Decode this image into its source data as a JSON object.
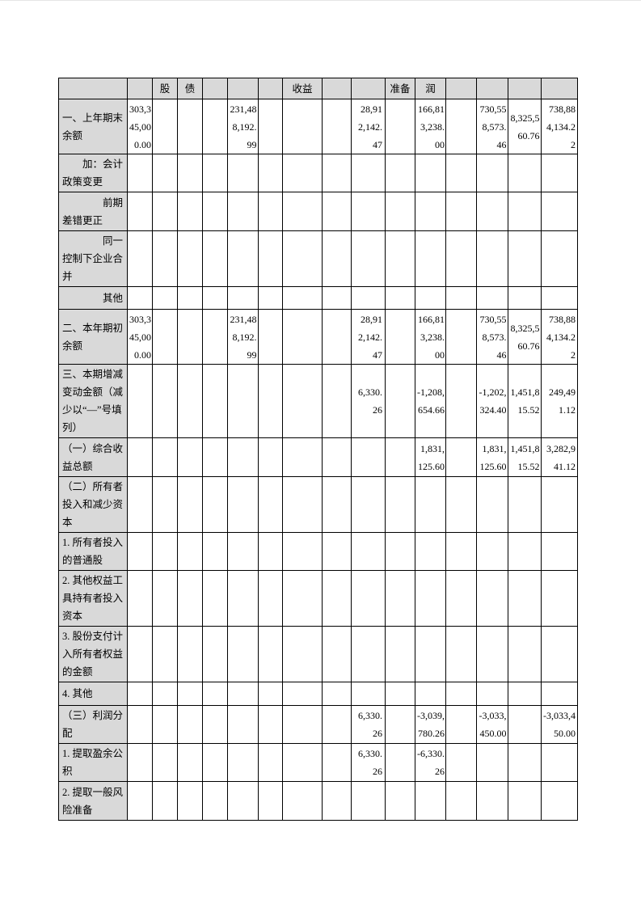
{
  "colors": {
    "page_bg": "#ffffff",
    "shaded_bg": "#d9d9d9",
    "grid": "#000000",
    "text": "#000000"
  },
  "table": {
    "header_cells": [
      "",
      "",
      "股",
      "债",
      "",
      "",
      "",
      "收益",
      "",
      "",
      "准备",
      "润",
      "",
      "",
      "",
      ""
    ],
    "rows": [
      {
        "label": "一、上年期末\n余额",
        "values": [
          "303,345,000.00",
          "",
          "",
          "",
          "231,488,192.99",
          "",
          "",
          "",
          "28,912,142.47",
          "",
          "166,813,238.00",
          "",
          "730,558,573.46",
          "8,325,560.76",
          "738,884,134.22"
        ]
      },
      {
        "label": "　　加：会计\n政策变更",
        "values": [
          "",
          "",
          "",
          "",
          "",
          "",
          "",
          "",
          "",
          "",
          "",
          "",
          "",
          "",
          ""
        ]
      },
      {
        "label": "　　　　前期\n差错更正",
        "values": [
          "",
          "",
          "",
          "",
          "",
          "",
          "",
          "",
          "",
          "",
          "",
          "",
          "",
          "",
          ""
        ]
      },
      {
        "label": "　　　　同一\n控制下企业合\n并",
        "values": [
          "",
          "",
          "",
          "",
          "",
          "",
          "",
          "",
          "",
          "",
          "",
          "",
          "",
          "",
          ""
        ]
      },
      {
        "label": "　　　　其他",
        "values": [
          "",
          "",
          "",
          "",
          "",
          "",
          "",
          "",
          "",
          "",
          "",
          "",
          "",
          "",
          ""
        ]
      },
      {
        "label": "二、本年期初\n余额",
        "values": [
          "303,345,000.00",
          "",
          "",
          "",
          "231,488,192.99",
          "",
          "",
          "",
          "28,912,142.47",
          "",
          "166,813,238.00",
          "",
          "730,558,573.46",
          "8,325,560.76",
          "738,884,134.22"
        ]
      },
      {
        "label": "三、本期增减\n变动金额（减\n少以“—”号填\n列）",
        "values": [
          "",
          "",
          "",
          "",
          "",
          "",
          "",
          "",
          "6,330.26",
          "",
          "-1,208,654.66",
          "",
          "-1,202,324.40",
          "1,451,815.52",
          "249,491.12"
        ]
      },
      {
        "label": "（一）综合收\n益总额",
        "values": [
          "",
          "",
          "",
          "",
          "",
          "",
          "",
          "",
          "",
          "",
          "1,831,125.60",
          "",
          "1,831,125.60",
          "1,451,815.52",
          "3,282,941.12"
        ]
      },
      {
        "label": "（二）所有者\n投入和减少资\n本",
        "values": [
          "",
          "",
          "",
          "",
          "",
          "",
          "",
          "",
          "",
          "",
          "",
          "",
          "",
          "",
          ""
        ]
      },
      {
        "label": "1. 所有者投入\n的普通股",
        "values": [
          "",
          "",
          "",
          "",
          "",
          "",
          "",
          "",
          "",
          "",
          "",
          "",
          "",
          "",
          ""
        ]
      },
      {
        "label": "2. 其他权益工\n具持有者投入\n资本",
        "values": [
          "",
          "",
          "",
          "",
          "",
          "",
          "",
          "",
          "",
          "",
          "",
          "",
          "",
          "",
          ""
        ]
      },
      {
        "label": "3. 股份支付计\n入所有者权益\n的金额",
        "values": [
          "",
          "",
          "",
          "",
          "",
          "",
          "",
          "",
          "",
          "",
          "",
          "",
          "",
          "",
          ""
        ]
      },
      {
        "label": "4. 其他",
        "values": [
          "",
          "",
          "",
          "",
          "",
          "",
          "",
          "",
          "",
          "",
          "",
          "",
          "",
          "",
          ""
        ]
      },
      {
        "label": "（三）利润分\n配",
        "values": [
          "",
          "",
          "",
          "",
          "",
          "",
          "",
          "",
          "6,330.26",
          "",
          "-3,039,780.26",
          "",
          "-3,033,450.00",
          "",
          "-3,033,450.00"
        ]
      },
      {
        "label": "1. 提取盈余公\n积",
        "values": [
          "",
          "",
          "",
          "",
          "",
          "",
          "",
          "",
          "6,330.26",
          "",
          "-6,330.26",
          "",
          "",
          "",
          ""
        ]
      },
      {
        "label": "2. 提取一般风\n险准备",
        "values": [
          "",
          "",
          "",
          "",
          "",
          "",
          "",
          "",
          "",
          "",
          "",
          "",
          "",
          "",
          ""
        ]
      }
    ]
  }
}
